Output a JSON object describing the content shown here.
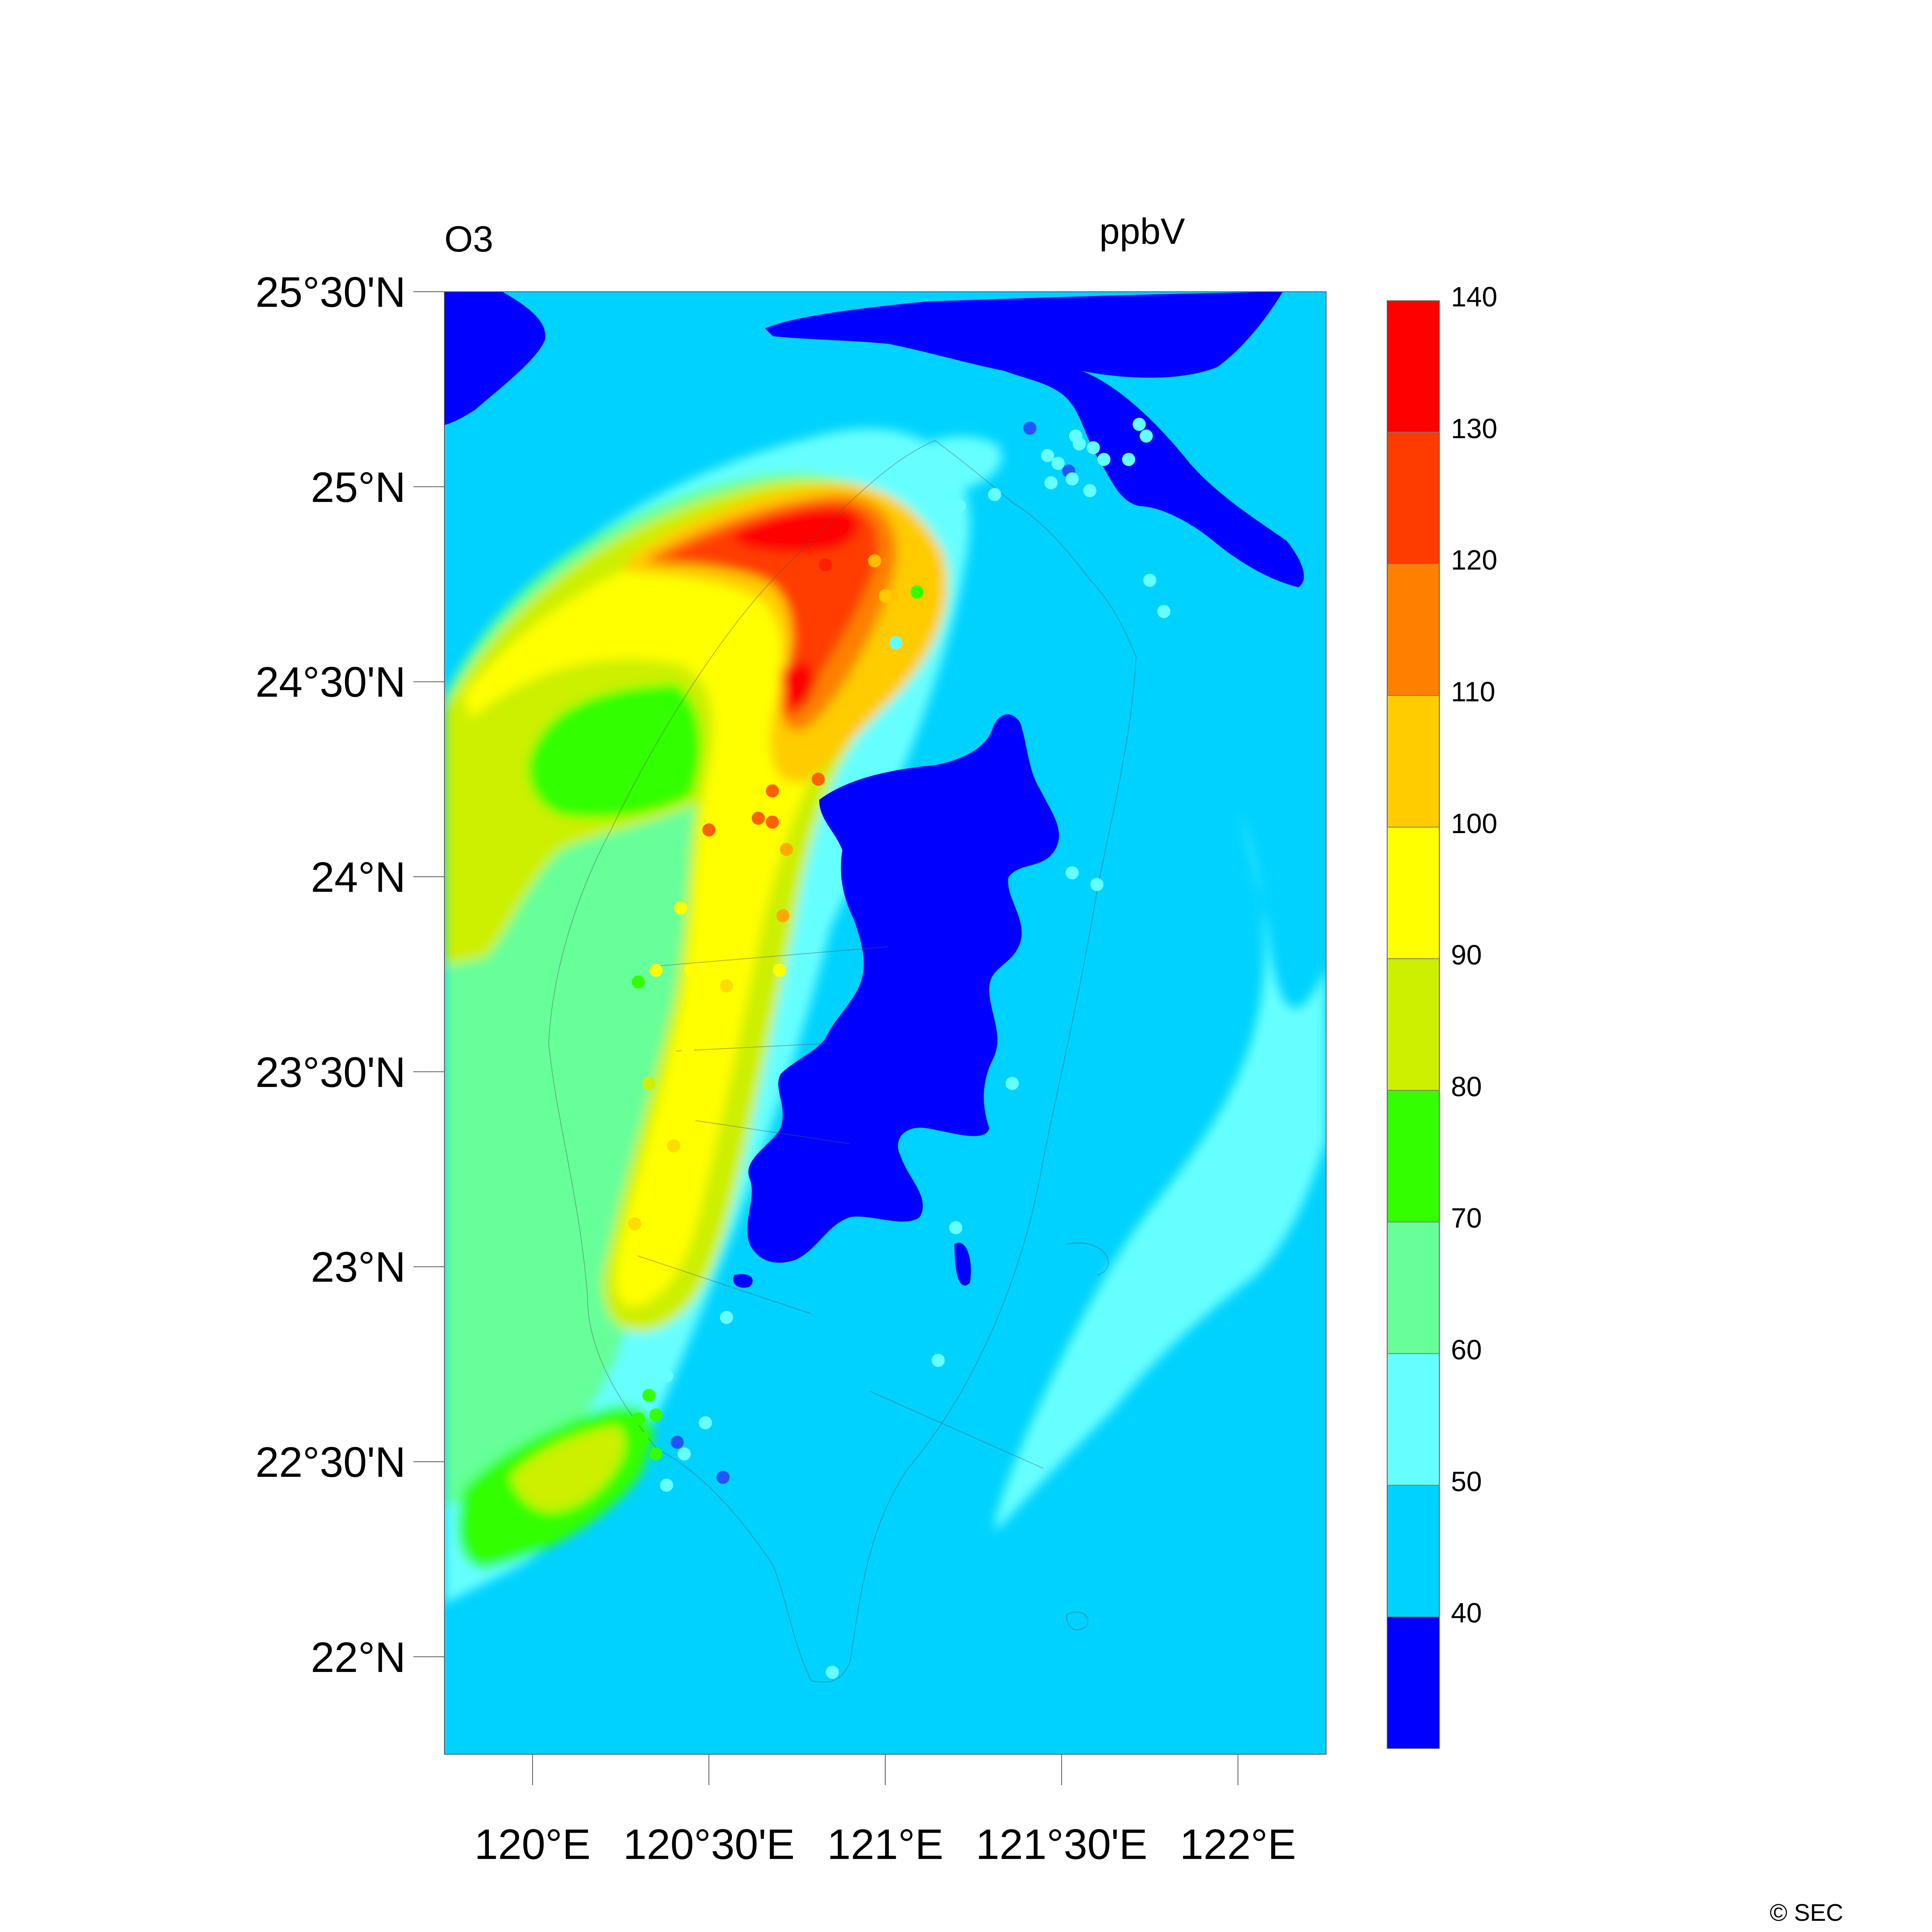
{
  "header": {
    "variable": "O3",
    "units": "ppbV"
  },
  "map": {
    "lat_range": [
      21.75,
      25.5
    ],
    "lon_range": [
      119.75,
      122.25
    ],
    "lat_ticks": [
      {
        "value": 25.5,
        "label": "25°30'N"
      },
      {
        "value": 25.0,
        "label": "25°N"
      },
      {
        "value": 24.5,
        "label": "24°30'N"
      },
      {
        "value": 24.0,
        "label": "24°N"
      },
      {
        "value": 23.5,
        "label": "23°30'N"
      },
      {
        "value": 23.0,
        "label": "23°N"
      },
      {
        "value": 22.5,
        "label": "22°30'N"
      },
      {
        "value": 22.0,
        "label": "22°N"
      }
    ],
    "lon_ticks": [
      {
        "value": 120.0,
        "label": "120°E"
      },
      {
        "value": 120.5,
        "label": "120°30'E"
      },
      {
        "value": 121.0,
        "label": "121°E"
      },
      {
        "value": 121.5,
        "label": "121°30'E"
      },
      {
        "value": 122.0,
        "label": "122°E"
      }
    ]
  },
  "colorbar": {
    "colors": [
      "#0000ff",
      "#00d2ff",
      "#66ffff",
      "#66ff99",
      "#33ff00",
      "#ccf000",
      "#ffff00",
      "#ffcc00",
      "#ff8000",
      "#ff3c00",
      "#ff0000"
    ],
    "labels": [
      "40",
      "50",
      "60",
      "70",
      "80",
      "90",
      "100",
      "110",
      "120",
      "130",
      "140"
    ]
  },
  "stations": [
    {
      "lat": 24.81,
      "lon": 120.97,
      "color": "#ffbb00"
    },
    {
      "lat": 24.8,
      "lon": 120.83,
      "color": "#ff2000"
    },
    {
      "lat": 24.72,
      "lon": 121.0,
      "color": "#ffcc00"
    },
    {
      "lat": 24.73,
      "lon": 121.09,
      "color": "#33ff00"
    },
    {
      "lat": 24.22,
      "lon": 120.68,
      "color": "#ff6000"
    },
    {
      "lat": 24.15,
      "lon": 120.64,
      "color": "#ff6000"
    },
    {
      "lat": 24.14,
      "lon": 120.68,
      "color": "#ff6000"
    },
    {
      "lat": 24.25,
      "lon": 120.81,
      "color": "#ff6000"
    },
    {
      "lat": 24.12,
      "lon": 120.5,
      "color": "#ff6000"
    },
    {
      "lat": 24.07,
      "lon": 120.72,
      "color": "#ffaa00"
    },
    {
      "lat": 23.92,
      "lon": 120.42,
      "color": "#ffff00"
    },
    {
      "lat": 23.9,
      "lon": 120.71,
      "color": "#ffaa00"
    },
    {
      "lat": 23.76,
      "lon": 120.35,
      "color": "#ffff00"
    },
    {
      "lat": 23.76,
      "lon": 120.45,
      "color": "#ffff00"
    },
    {
      "lat": 23.73,
      "lon": 120.3,
      "color": "#33ff00"
    },
    {
      "lat": 23.72,
      "lon": 120.55,
      "color": "#ffdd00"
    },
    {
      "lat": 23.76,
      "lon": 120.7,
      "color": "#ffff00"
    },
    {
      "lat": 23.56,
      "lon": 120.44,
      "color": "#ffff00"
    },
    {
      "lat": 23.47,
      "lon": 120.33,
      "color": "#ccf000"
    },
    {
      "lat": 23.31,
      "lon": 120.4,
      "color": "#ffdd00"
    },
    {
      "lat": 23.11,
      "lon": 120.29,
      "color": "#ffdd00"
    },
    {
      "lat": 22.87,
      "lon": 120.55,
      "color": "#66ffff"
    },
    {
      "lat": 22.67,
      "lon": 120.33,
      "color": "#33ff00"
    },
    {
      "lat": 22.62,
      "lon": 120.35,
      "color": "#33ff00"
    },
    {
      "lat": 22.61,
      "lon": 120.3,
      "color": "#33ff00"
    },
    {
      "lat": 22.56,
      "lon": 120.31,
      "color": "#33ff00"
    },
    {
      "lat": 22.52,
      "lon": 120.35,
      "color": "#33ff00"
    },
    {
      "lat": 22.55,
      "lon": 120.41,
      "color": "#2255ff"
    },
    {
      "lat": 22.6,
      "lon": 120.49,
      "color": "#66ffff"
    },
    {
      "lat": 22.52,
      "lon": 120.43,
      "color": "#66ffff"
    },
    {
      "lat": 22.46,
      "lon": 120.54,
      "color": "#2255ff"
    },
    {
      "lat": 22.44,
      "lon": 120.38,
      "color": "#66ffff"
    },
    {
      "lat": 22.72,
      "lon": 120.38,
      "color": "#66ffff"
    },
    {
      "lat": 24.6,
      "lon": 121.03,
      "color": "#66ffff"
    },
    {
      "lat": 24.01,
      "lon": 121.53,
      "color": "#66ffff"
    },
    {
      "lat": 23.47,
      "lon": 121.36,
      "color": "#66ffff"
    },
    {
      "lat": 23.1,
      "lon": 121.2,
      "color": "#66ffff"
    },
    {
      "lat": 22.76,
      "lon": 121.15,
      "color": "#66ffff"
    },
    {
      "lat": 21.96,
      "lon": 120.85,
      "color": "#66ffff"
    },
    {
      "lat": 25.13,
      "lon": 121.54,
      "color": "#66ffff"
    },
    {
      "lat": 25.06,
      "lon": 121.49,
      "color": "#66ffff"
    },
    {
      "lat": 25.04,
      "lon": 121.52,
      "color": "#2255ff"
    },
    {
      "lat": 25.08,
      "lon": 121.46,
      "color": "#66ffff"
    },
    {
      "lat": 25.02,
      "lon": 121.53,
      "color": "#66ffff"
    },
    {
      "lat": 25.01,
      "lon": 121.47,
      "color": "#66ffff"
    },
    {
      "lat": 24.99,
      "lon": 121.58,
      "color": "#66ffff"
    },
    {
      "lat": 24.95,
      "lon": 121.21,
      "color": "#66ffff"
    },
    {
      "lat": 24.98,
      "lon": 121.31,
      "color": "#66ffff"
    },
    {
      "lat": 24.95,
      "lon": 121.16,
      "color": "#66ffff"
    },
    {
      "lat": 25.07,
      "lon": 121.62,
      "color": "#66ffff"
    },
    {
      "lat": 25.1,
      "lon": 121.59,
      "color": "#66ffff"
    },
    {
      "lat": 25.15,
      "lon": 121.41,
      "color": "#2255ff"
    },
    {
      "lat": 25.11,
      "lon": 121.55,
      "color": "#66ffff"
    },
    {
      "lat": 25.16,
      "lon": 121.72,
      "color": "#66ffff"
    },
    {
      "lat": 25.13,
      "lon": 121.74,
      "color": "#66ffff"
    },
    {
      "lat": 24.76,
      "lon": 121.75,
      "color": "#66ffff"
    },
    {
      "lat": 24.68,
      "lon": 121.79,
      "color": "#66ffff"
    },
    {
      "lat": 23.98,
      "lon": 121.6,
      "color": "#66ffff"
    },
    {
      "lat": 25.07,
      "lon": 121.69,
      "color": "#66ffff"
    }
  ],
  "copyright": "© SEC"
}
